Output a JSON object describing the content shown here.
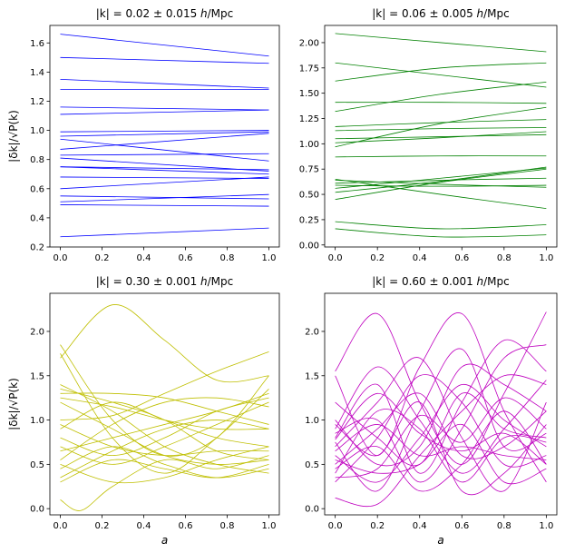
{
  "chart_data": [
    {
      "type": "line",
      "title_prefix": "|k| = 0.02 ± 0.015 ",
      "title_unit_h": "h",
      "title_unit_rest": "/Mpc",
      "ylabel": "|δk|/√P(k)",
      "xlabel": "",
      "color": "#0000ff",
      "xlim": [
        -0.05,
        1.05
      ],
      "ylim": [
        0.2,
        1.72
      ],
      "xticks": [
        "0.0",
        "0.2",
        "0.4",
        "0.6",
        "0.8",
        "1.0"
      ],
      "yticks": [
        "0.2",
        "0.4",
        "0.6",
        "0.8",
        "1.0",
        "1.2",
        "1.4",
        "1.6"
      ],
      "series": [
        {
          "x": [
            0,
            1
          ],
          "y": [
            1.66,
            1.51
          ]
        },
        {
          "x": [
            0,
            1
          ],
          "y": [
            1.5,
            1.46
          ]
        },
        {
          "x": [
            0,
            1
          ],
          "y": [
            1.35,
            1.29
          ]
        },
        {
          "x": [
            0,
            1
          ],
          "y": [
            1.28,
            1.28
          ]
        },
        {
          "x": [
            0,
            1
          ],
          "y": [
            1.16,
            1.14
          ]
        },
        {
          "x": [
            0,
            1
          ],
          "y": [
            1.11,
            1.14
          ]
        },
        {
          "x": [
            0,
            1
          ],
          "y": [
            0.99,
            1.0
          ]
        },
        {
          "x": [
            0,
            1
          ],
          "y": [
            0.96,
            0.99
          ]
        },
        {
          "x": [
            0,
            1
          ],
          "y": [
            0.94,
            0.79
          ]
        },
        {
          "x": [
            0,
            1
          ],
          "y": [
            0.87,
            0.98
          ]
        },
        {
          "x": [
            0,
            1
          ],
          "y": [
            0.83,
            0.84
          ]
        },
        {
          "x": [
            0,
            1
          ],
          "y": [
            0.81,
            0.72
          ]
        },
        {
          "x": [
            0,
            1
          ],
          "y": [
            0.75,
            0.73
          ]
        },
        {
          "x": [
            0,
            1
          ],
          "y": [
            0.75,
            0.7
          ]
        },
        {
          "x": [
            0,
            1
          ],
          "y": [
            0.68,
            0.67
          ]
        },
        {
          "x": [
            0,
            1
          ],
          "y": [
            0.6,
            0.68
          ]
        },
        {
          "x": [
            0,
            1
          ],
          "y": [
            0.55,
            0.53
          ]
        },
        {
          "x": [
            0,
            1
          ],
          "y": [
            0.51,
            0.56
          ]
        },
        {
          "x": [
            0,
            1
          ],
          "y": [
            0.49,
            0.48
          ]
        },
        {
          "x": [
            0,
            1
          ],
          "y": [
            0.27,
            0.33
          ]
        }
      ]
    },
    {
      "type": "line",
      "title_prefix": "|k| = 0.06 ± 0.005 ",
      "title_unit_h": "h",
      "title_unit_rest": "/Mpc",
      "ylabel": "",
      "xlabel": "",
      "color": "#008000",
      "xlim": [
        -0.05,
        1.05
      ],
      "ylim": [
        -0.02,
        2.17
      ],
      "xticks": [
        "0.0",
        "0.2",
        "0.4",
        "0.6",
        "0.8",
        "1.0"
      ],
      "yticks": [
        "0.00",
        "0.25",
        "0.50",
        "0.75",
        "1.00",
        "1.25",
        "1.50",
        "1.75",
        "2.00"
      ],
      "series": [
        {
          "x": [
            0,
            0.5,
            1
          ],
          "y": [
            2.09,
            2.0,
            1.91
          ]
        },
        {
          "x": [
            0,
            0.5,
            1
          ],
          "y": [
            1.8,
            1.68,
            1.56
          ]
        },
        {
          "x": [
            0,
            0.5,
            1
          ],
          "y": [
            1.62,
            1.75,
            1.8
          ]
        },
        {
          "x": [
            0,
            0.5,
            1
          ],
          "y": [
            1.41,
            1.41,
            1.4
          ]
        },
        {
          "x": [
            0,
            0.5,
            1
          ],
          "y": [
            1.32,
            1.49,
            1.61
          ]
        },
        {
          "x": [
            0,
            0.5,
            1
          ],
          "y": [
            1.17,
            1.21,
            1.24
          ]
        },
        {
          "x": [
            0,
            0.5,
            1
          ],
          "y": [
            1.13,
            1.15,
            1.16
          ]
        },
        {
          "x": [
            0,
            0.5,
            1
          ],
          "y": [
            1.05,
            1.07,
            1.09
          ]
        },
        {
          "x": [
            0,
            0.5,
            1
          ],
          "y": [
            1.01,
            1.06,
            1.12
          ]
        },
        {
          "x": [
            0,
            0.5,
            1
          ],
          "y": [
            0.97,
            1.2,
            1.36
          ]
        },
        {
          "x": [
            0,
            0.5,
            1
          ],
          "y": [
            0.87,
            0.88,
            0.88
          ]
        },
        {
          "x": [
            0,
            0.5,
            1
          ],
          "y": [
            0.65,
            0.5,
            0.36
          ]
        },
        {
          "x": [
            0,
            0.5,
            1
          ],
          "y": [
            0.64,
            0.6,
            0.57
          ]
        },
        {
          "x": [
            0,
            0.5,
            1
          ],
          "y": [
            0.61,
            0.64,
            0.66
          ]
        },
        {
          "x": [
            0,
            0.5,
            1
          ],
          "y": [
            0.59,
            0.58,
            0.59
          ]
        },
        {
          "x": [
            0,
            0.5,
            1
          ],
          "y": [
            0.56,
            0.66,
            0.76
          ]
        },
        {
          "x": [
            0,
            0.5,
            1
          ],
          "y": [
            0.52,
            0.63,
            0.77
          ]
        },
        {
          "x": [
            0,
            0.5,
            1
          ],
          "y": [
            0.45,
            0.62,
            0.75
          ]
        },
        {
          "x": [
            0,
            0.5,
            1
          ],
          "y": [
            0.23,
            0.16,
            0.2
          ]
        },
        {
          "x": [
            0,
            0.5,
            1
          ],
          "y": [
            0.16,
            0.08,
            0.1
          ]
        }
      ]
    },
    {
      "type": "line",
      "title_prefix": "|k| = 0.30 ± 0.001 ",
      "title_unit_h": "h",
      "title_unit_rest": "/Mpc",
      "ylabel": "|δk|/√P(k)",
      "xlabel": "a",
      "color": "#bfbf00",
      "xlim": [
        -0.05,
        1.05
      ],
      "ylim": [
        -0.07,
        2.43
      ],
      "xticks": [
        "0.0",
        "0.2",
        "0.4",
        "0.6",
        "0.8",
        "1.0"
      ],
      "yticks": [
        "0.0",
        "0.5",
        "1.0",
        "1.5",
        "2.0"
      ],
      "series": [
        {
          "x": [
            0,
            0.25,
            0.5,
            0.75,
            1
          ],
          "y": [
            1.7,
            2.3,
            1.9,
            1.45,
            1.5
          ]
        },
        {
          "x": [
            0,
            0.25,
            0.5,
            0.75,
            1
          ],
          "y": [
            1.85,
            1.0,
            0.6,
            0.8,
            1.5
          ]
        },
        {
          "x": [
            0,
            0.25,
            0.5,
            0.75,
            1
          ],
          "y": [
            1.75,
            0.8,
            0.4,
            0.8,
            1.35
          ]
        },
        {
          "x": [
            0,
            0.25,
            0.5,
            0.75,
            1
          ],
          "y": [
            1.4,
            1.1,
            0.7,
            0.5,
            0.4
          ]
        },
        {
          "x": [
            0,
            0.25,
            0.5,
            0.75,
            1
          ],
          "y": [
            1.35,
            1.2,
            1.0,
            0.65,
            0.55
          ]
        },
        {
          "x": [
            0,
            0.25,
            0.5,
            0.75,
            1
          ],
          "y": [
            1.3,
            1.3,
            1.25,
            1.1,
            0.95
          ]
        },
        {
          "x": [
            0,
            0.25,
            0.5,
            0.75,
            1
          ],
          "y": [
            1.25,
            1.15,
            1.0,
            0.9,
            0.9
          ]
        },
        {
          "x": [
            0,
            0.25,
            0.5,
            0.75,
            1
          ],
          "y": [
            1.2,
            0.9,
            0.6,
            0.5,
            0.55
          ]
        },
        {
          "x": [
            0,
            0.25,
            0.5,
            0.75,
            1
          ],
          "y": [
            1.0,
            1.05,
            1.3,
            1.55,
            1.77
          ]
        },
        {
          "x": [
            0,
            0.25,
            0.5,
            0.75,
            1
          ],
          "y": [
            0.95,
            0.7,
            0.6,
            0.65,
            0.65
          ]
        },
        {
          "x": [
            0,
            0.25,
            0.5,
            0.75,
            1
          ],
          "y": [
            0.9,
            1.2,
            1.0,
            0.8,
            0.7
          ]
        },
        {
          "x": [
            0,
            0.25,
            0.5,
            0.75,
            1
          ],
          "y": [
            0.8,
            0.6,
            0.8,
            1.1,
            1.25
          ]
        },
        {
          "x": [
            0,
            0.25,
            0.5,
            0.75,
            1
          ],
          "y": [
            0.7,
            0.5,
            0.7,
            0.95,
            1.2
          ]
        },
        {
          "x": [
            0,
            0.25,
            0.5,
            0.75,
            1
          ],
          "y": [
            0.65,
            0.8,
            0.95,
            1.1,
            1.3
          ]
        },
        {
          "x": [
            0,
            0.25,
            0.5,
            0.75,
            1
          ],
          "y": [
            0.55,
            0.95,
            1.2,
            1.25,
            1.15
          ]
        },
        {
          "x": [
            0,
            0.25,
            0.5,
            0.75,
            1
          ],
          "y": [
            0.5,
            0.3,
            0.35,
            0.55,
            0.7
          ]
        },
        {
          "x": [
            0,
            0.25,
            0.5,
            0.75,
            1
          ],
          "y": [
            0.45,
            0.7,
            0.5,
            0.35,
            0.45
          ]
        },
        {
          "x": [
            0,
            0.25,
            0.5,
            0.75,
            1
          ],
          "y": [
            0.35,
            0.65,
            0.9,
            1.0,
            0.9
          ]
        },
        {
          "x": [
            0,
            0.25,
            0.5,
            0.75,
            1
          ],
          "y": [
            0.3,
            0.55,
            0.45,
            0.35,
            0.5
          ]
        },
        {
          "x": [
            0,
            0.1,
            0.25,
            0.5,
            0.75,
            1
          ],
          "y": [
            0.1,
            -0.02,
            0.25,
            0.55,
            0.45,
            0.6
          ]
        }
      ]
    },
    {
      "type": "line",
      "title_prefix": "|k| = 0.60 ± 0.001 ",
      "title_unit_h": "h",
      "title_unit_rest": "/Mpc",
      "ylabel": "",
      "xlabel": "a",
      "color": "#bf00bf",
      "xlim": [
        -0.05,
        1.05
      ],
      "ylim": [
        -0.07,
        2.43
      ],
      "xticks": [
        "0.0",
        "0.2",
        "0.4",
        "0.6",
        "0.8",
        "1.0"
      ],
      "yticks": [
        "0.0",
        "0.5",
        "1.0",
        "1.5",
        "2.0"
      ],
      "series": [
        {
          "x": [
            0,
            0.2,
            0.4,
            0.6,
            0.8,
            1
          ],
          "y": [
            1.55,
            2.2,
            1.2,
            0.5,
            1.3,
            2.22
          ]
        },
        {
          "x": [
            0,
            0.2,
            0.4,
            0.6,
            0.8,
            1
          ],
          "y": [
            1.5,
            0.6,
            1.6,
            2.2,
            1.1,
            0.3
          ]
        },
        {
          "x": [
            0,
            0.2,
            0.4,
            0.6,
            0.8,
            1
          ],
          "y": [
            0.8,
            1.4,
            0.4,
            1.2,
            1.9,
            1.55
          ]
        },
        {
          "x": [
            0,
            0.2,
            0.4,
            0.6,
            0.8,
            1
          ],
          "y": [
            0.75,
            0.2,
            1.1,
            1.8,
            0.7,
            0.85
          ]
        },
        {
          "x": [
            0,
            0.2,
            0.4,
            0.6,
            0.8,
            1
          ],
          "y": [
            0.7,
            1.2,
            1.7,
            0.8,
            0.2,
            1.2
          ]
        },
        {
          "x": [
            0,
            0.2,
            0.4,
            0.6,
            0.8,
            1
          ],
          "y": [
            0.85,
            1.0,
            0.3,
            0.9,
            1.7,
            1.85
          ]
        },
        {
          "x": [
            0,
            0.2,
            0.4,
            0.6,
            0.8,
            1
          ],
          "y": [
            0.6,
            0.3,
            0.8,
            1.4,
            1.0,
            0.7
          ]
        },
        {
          "x": [
            0,
            0.2,
            0.4,
            0.6,
            0.8,
            1
          ],
          "y": [
            0.5,
            0.9,
            1.3,
            0.6,
            0.7,
            1.1
          ]
        },
        {
          "x": [
            0,
            0.2,
            0.4,
            0.6,
            0.8,
            1
          ],
          "y": [
            0.45,
            0.7,
            0.2,
            0.5,
            1.1,
            0.5
          ]
        },
        {
          "x": [
            0,
            0.2,
            0.4,
            0.6,
            0.8,
            1
          ],
          "y": [
            0.4,
            1.1,
            0.9,
            0.3,
            0.8,
            0.75
          ]
        },
        {
          "x": [
            0,
            0.2,
            0.4,
            0.6,
            0.8,
            1
          ],
          "y": [
            1.0,
            0.5,
            0.7,
            1.6,
            1.4,
            1.1
          ]
        },
        {
          "x": [
            0,
            0.2,
            0.4,
            0.6,
            0.8,
            1
          ],
          "y": [
            0.9,
            1.6,
            1.0,
            0.4,
            0.9,
            1.45
          ]
        },
        {
          "x": [
            0,
            0.2,
            0.4,
            0.6,
            0.8,
            1
          ],
          "y": [
            0.3,
            0.8,
            1.5,
            1.2,
            0.5,
            0.6
          ]
        },
        {
          "x": [
            0,
            0.2,
            0.4,
            0.6,
            0.8,
            1
          ],
          "y": [
            0.12,
            0.05,
            0.6,
            1.1,
            1.5,
            1.4
          ]
        },
        {
          "x": [
            0,
            0.2,
            0.4,
            0.6,
            0.8,
            1
          ],
          "y": [
            0.55,
            0.4,
            0.5,
            0.95,
            0.3,
            0.45
          ]
        },
        {
          "x": [
            0,
            0.2,
            0.4,
            0.6,
            0.8,
            1
          ],
          "y": [
            0.65,
            0.95,
            0.6,
            0.7,
            0.6,
            0.55
          ]
        },
        {
          "x": [
            0,
            0.2,
            0.4,
            0.6,
            0.8,
            1
          ],
          "y": [
            0.95,
            0.6,
            1.2,
            0.2,
            0.4,
            0.95
          ]
        },
        {
          "x": [
            0,
            0.2,
            0.4,
            0.6,
            0.8,
            1
          ],
          "y": [
            1.2,
            0.8,
            0.5,
            1.3,
            0.9,
            0.8
          ]
        },
        {
          "x": [
            0,
            0.2,
            0.4,
            0.6,
            0.8,
            1
          ],
          "y": [
            0.35,
            0.45,
            1.05,
            0.75,
            1.25,
            0.9
          ]
        },
        {
          "x": [
            0,
            0.2,
            0.4,
            0.6,
            0.8,
            1
          ],
          "y": [
            0.78,
            1.3,
            0.85,
            0.65,
            0.85,
            0.5
          ]
        }
      ]
    }
  ]
}
